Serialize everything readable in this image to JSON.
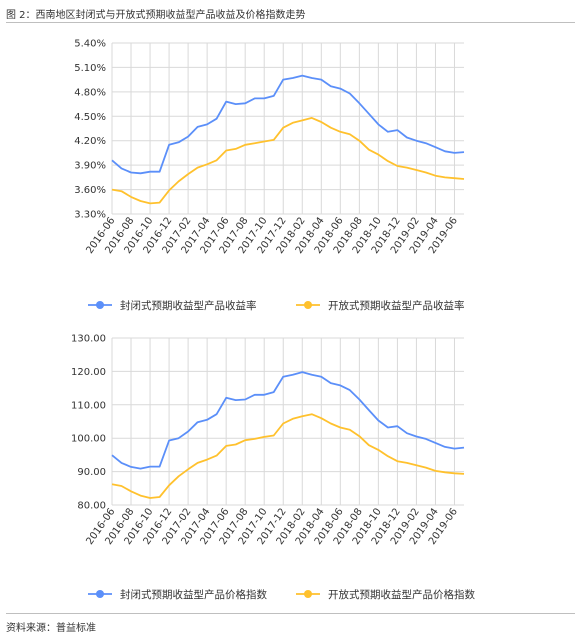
{
  "figure_title": "图 2：西南地区封闭式与开放式预期收益型产品收益及价格指数走势",
  "source_text": "资料来源：普益标准",
  "colors": {
    "closed": "#5B8FF9",
    "open": "#FFC12D",
    "grid": "#d9d9d9"
  },
  "chart_data": [
    {
      "type": "line",
      "title": "",
      "xlabel": "",
      "ylabel": "",
      "ylim": [
        3.3,
        5.4
      ],
      "yticks": [
        "5.40%",
        "5.10%",
        "4.80%",
        "4.50%",
        "4.20%",
        "3.90%",
        "3.60%",
        "3.30%"
      ],
      "ytick_values": [
        5.4,
        5.1,
        4.8,
        4.5,
        4.2,
        3.9,
        3.6,
        3.3
      ],
      "xtick_labels": [
        "2016-06",
        "2016-08",
        "2016-10",
        "2016-12",
        "2017-02",
        "2017-04",
        "2017-06",
        "2017-08",
        "2017-10",
        "2017-12",
        "2018-02",
        "2018-04",
        "2018-06",
        "2018-08",
        "2018-10",
        "2018-12",
        "2019-02",
        "2019-04",
        "2019-06"
      ],
      "grid": true,
      "legend_position": "bottom",
      "series": [
        {
          "name": "封闭式预期收益型产品收益率",
          "color_key": "closed",
          "values": [
            3.96,
            3.86,
            3.81,
            3.8,
            3.82,
            3.82,
            4.15,
            4.18,
            4.25,
            4.37,
            4.4,
            4.47,
            4.68,
            4.65,
            4.66,
            4.72,
            4.72,
            4.75,
            4.95,
            4.97,
            5.0,
            4.97,
            4.95,
            4.87,
            4.84,
            4.78,
            4.66,
            4.53,
            4.4,
            4.31,
            4.33,
            4.24,
            4.2,
            4.17,
            4.12,
            4.07,
            4.05,
            4.06
          ]
        },
        {
          "name": "开放式预期收益型产品收益率",
          "color_key": "open",
          "values": [
            3.6,
            3.58,
            3.51,
            3.46,
            3.43,
            3.44,
            3.59,
            3.7,
            3.79,
            3.87,
            3.91,
            3.96,
            4.08,
            4.1,
            4.15,
            4.17,
            4.19,
            4.21,
            4.36,
            4.42,
            4.45,
            4.48,
            4.43,
            4.36,
            4.31,
            4.28,
            4.2,
            4.09,
            4.03,
            3.95,
            3.89,
            3.87,
            3.84,
            3.81,
            3.77,
            3.75,
            3.74,
            3.73
          ]
        }
      ]
    },
    {
      "type": "line",
      "title": "",
      "xlabel": "",
      "ylabel": "",
      "ylim": [
        80,
        130
      ],
      "yticks": [
        "130.00",
        "120.00",
        "110.00",
        "100.00",
        "90.00",
        "80.00"
      ],
      "ytick_values": [
        130,
        120,
        110,
        100,
        90,
        80
      ],
      "xtick_labels": [
        "2016-06",
        "2016-08",
        "2016-10",
        "2016-12",
        "2017-02",
        "2017-04",
        "2017-06",
        "2017-08",
        "2017-10",
        "2017-12",
        "2018-02",
        "2018-04",
        "2018-06",
        "2018-08",
        "2018-10",
        "2018-12",
        "2019-02",
        "2019-04",
        "2019-06"
      ],
      "grid": true,
      "legend_position": "bottom",
      "series": [
        {
          "name": "封闭式预期收益型产品价格指数",
          "color_key": "closed",
          "values": [
            94.9,
            92.6,
            91.4,
            90.9,
            91.5,
            91.5,
            99.3,
            100.0,
            102.0,
            104.8,
            105.5,
            107.2,
            112.1,
            111.4,
            111.6,
            113.0,
            113.0,
            113.8,
            118.4,
            119.0,
            119.8,
            119.0,
            118.4,
            116.5,
            115.8,
            114.4,
            111.6,
            108.4,
            105.3,
            103.2,
            103.6,
            101.5,
            100.5,
            99.8,
            98.6,
            97.4,
            96.9,
            97.2
          ]
        },
        {
          "name": "开放式预期收益型产品价格指数",
          "color_key": "open",
          "values": [
            86.2,
            85.7,
            84.1,
            82.8,
            82.1,
            82.4,
            85.9,
            88.6,
            90.7,
            92.6,
            93.6,
            94.8,
            97.7,
            98.1,
            99.4,
            99.8,
            100.4,
            100.8,
            104.4,
            105.8,
            106.6,
            107.2,
            106.0,
            104.4,
            103.2,
            102.5,
            100.6,
            97.9,
            96.5,
            94.6,
            93.1,
            92.6,
            91.9,
            91.2,
            90.2,
            89.8,
            89.5,
            89.3
          ]
        }
      ]
    }
  ]
}
